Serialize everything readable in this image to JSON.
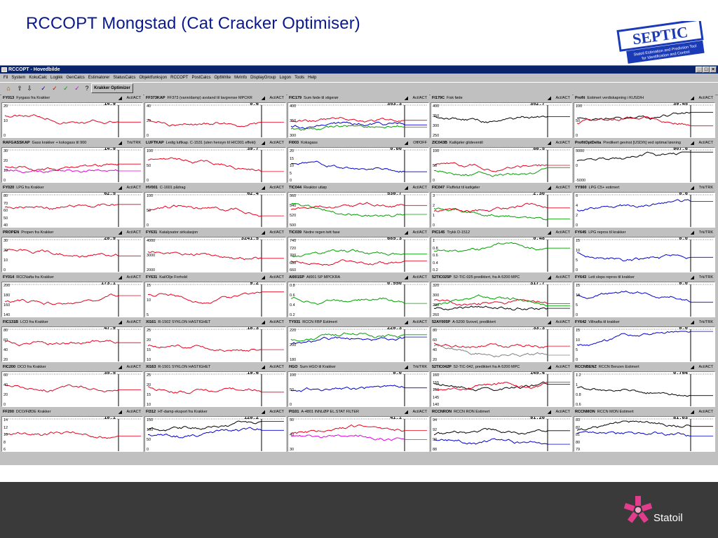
{
  "slide": {
    "title": "RCCOPT Mongstad (Cat Cracker Optimiser)"
  },
  "logo": {
    "word": "SEPTIC",
    "line1": "Statoil Estimation and Prediction Tool",
    "line2": "for Identification and Control"
  },
  "window": {
    "title": "RCCOPT - Hovedbilde"
  },
  "menu": [
    "Fil",
    "System",
    "KokuCalc",
    "Logikk",
    "GenCalcs",
    "Estimatorer",
    "StatusCalcs",
    "Objektfunksjon",
    "RCCOPT",
    "PostCalcs",
    "OptWrite",
    "MvInfo",
    "DisplayGroup",
    "Logon",
    "Tools",
    "Help"
  ],
  "toolbar": {
    "optimizer_button": "Krakker Optimizer"
  },
  "brand": {
    "name": "Statoil"
  },
  "colors": {
    "red": "#e8001c",
    "green": "#00a000",
    "blue": "#0000d0",
    "black": "#000000",
    "magenta": "#e000e0",
    "gray": "#808080",
    "title": "#0a1a8c"
  },
  "panels": [
    {
      "tag": "FY013",
      "desc": "Fyrgass fra Krakker",
      "mode": "Act/ACT",
      "value": "14.9",
      "ticks": [
        "20",
        "10",
        "0"
      ],
      "lines": [
        "red"
      ]
    },
    {
      "tag": "FF373KAP",
      "desc": "FF373 (vann/damp) avstand til lavgrense MPCKR",
      "mode": "Act/ACT",
      "value": "0.6",
      "ticks": [
        "40",
        "20",
        "0"
      ],
      "lines": [
        "red"
      ]
    },
    {
      "tag": "FIC179",
      "desc": "Sum føde til stigerør",
      "mode": "Act/ACT",
      "value": "353.3",
      "ticks": [
        "400",
        "350",
        "300"
      ],
      "lines": [
        "red",
        "blue",
        "green"
      ]
    },
    {
      "tag": "FI179C",
      "desc": "Fisk føde",
      "mode": "Act/ACT",
      "value": "352.7",
      "ticks": [
        "400",
        "350",
        "300",
        "250"
      ],
      "lines": [
        "black"
      ]
    },
    {
      "tag": "Profit",
      "desc": "Estimert verdiskapning i KUSD/H",
      "mode": "Act/ACT",
      "value": "39.45",
      "ticks": [
        "100",
        "50",
        "0"
      ],
      "lines": [
        "black",
        "red"
      ]
    },
    {
      "tag": "RAFGASSKAP",
      "desc": "Gass krakker + koksgass til 900",
      "mode": "Trk/TRK",
      "value": "14.9",
      "ticks": [
        "30",
        "20",
        "10",
        "0"
      ],
      "lines": [
        "red",
        "magenta"
      ]
    },
    {
      "tag": "LUFTKAP",
      "desc": "Ledig luftkap. C-1531 (uten hensyn til HIC001 effekt)",
      "mode": "Act/ACT",
      "value": "39.7",
      "ticks": [
        "100",
        "50",
        "0"
      ],
      "lines": [
        "red"
      ]
    },
    {
      "tag": "FI003",
      "desc": "Koksgass",
      "mode": "Off/OFF",
      "value": "0.00",
      "ticks": [
        "20",
        "15",
        "10",
        "5",
        "0"
      ],
      "lines": [
        "blue"
      ]
    },
    {
      "tag": "ZIC043B",
      "desc": "Katkjøler glideventil",
      "mode": "Act/ACT",
      "value": "86.5",
      "ticks": [
        "100",
        "50",
        "0"
      ],
      "lines": [
        "red",
        "green"
      ]
    },
    {
      "tag": "ProfitOptDelta",
      "desc": "Predikert gevinst [USD/h] ved optimal løsning",
      "mode": "Act/ACT",
      "value": "907.6",
      "ticks": [
        "5000",
        "0",
        "-5000"
      ],
      "lines": [
        "black"
      ]
    },
    {
      "tag": "FY020",
      "desc": "LPG fra Krakker",
      "mode": "Act/ACT",
      "value": "62.5",
      "ticks": [
        "80",
        "70",
        "60",
        "50",
        "40"
      ],
      "lines": [
        "red"
      ]
    },
    {
      "tag": "HV001",
      "desc": "C-1601 pådrag",
      "mode": "Act/ACT",
      "value": "62.4",
      "ticks": [
        "100",
        "50",
        "0"
      ],
      "lines": [
        "red"
      ]
    },
    {
      "tag": "TIC044",
      "desc": "Reaktor utløp",
      "mode": "Act/ACT",
      "value": "536.7",
      "ticks": [
        "560",
        "540",
        "520",
        "500"
      ],
      "lines": [
        "green",
        "red"
      ]
    },
    {
      "tag": "FIC047",
      "desc": "Fluffelut til katkjøler",
      "mode": "Act/ACT",
      "value": "2.30",
      "ticks": [
        "3",
        "2",
        "1",
        "0"
      ],
      "lines": [
        "green",
        "red"
      ]
    },
    {
      "tag": "YY900",
      "desc": "LPG C5+ estimert",
      "mode": "Trk/TRK",
      "value": "0.6",
      "ticks": [
        "6",
        "4",
        "2",
        "0"
      ],
      "lines": [
        "blue"
      ]
    },
    {
      "tag": "PROPEN",
      "desc": "Propen fra Krakker",
      "mode": "Act/ACT",
      "value": "20.9",
      "ticks": [
        "30",
        "20",
        "10",
        "0"
      ],
      "lines": [
        "red"
      ]
    },
    {
      "tag": "FY631",
      "desc": "Katalysator sirkulasjon",
      "mode": "Act/ACT",
      "value": "3241.5",
      "ticks": [
        "4000",
        "3000",
        "2000"
      ],
      "lines": [
        "red"
      ]
    },
    {
      "tag": "TIC039",
      "desc": "Nedre regen tett fase",
      "mode": "Act/ACT",
      "value": "685.3",
      "ticks": [
        "740",
        "720",
        "700",
        "680",
        "660"
      ],
      "lines": [
        "green",
        "red"
      ]
    },
    {
      "tag": "PIC145",
      "desc": "Trykk D-1512",
      "mode": "Act/ACT",
      "value": "0.48",
      "ticks": [
        "1",
        "0.8",
        "0.6",
        "0.4",
        "0.2"
      ],
      "lines": [
        "green"
      ]
    },
    {
      "tag": "FY645",
      "desc": "LPG repros til krakker",
      "mode": "Trk/TRK",
      "value": "0.0",
      "ticks": [
        "15",
        "10",
        "5",
        "0"
      ],
      "lines": [
        "blue"
      ]
    },
    {
      "tag": "FY014",
      "desc": "RCCNafta fra Krakker",
      "mode": "Act/ACT",
      "value": "173.1",
      "ticks": [
        "200",
        "180",
        "160",
        "140"
      ],
      "lines": [
        "red"
      ]
    },
    {
      "tag": "FY631",
      "desc": "Kat/Olje Forhold",
      "mode": "Act/ACT",
      "value": "9.2",
      "ticks": [
        "15",
        "10",
        "5"
      ],
      "lines": [
        "red"
      ]
    },
    {
      "tag": "AI001SP",
      "desc": "AI001 SP MPCKRA",
      "mode": "Act/ACT",
      "value": "0.550",
      "ticks": [
        "0.8",
        "0.6",
        "0.4",
        "0.2"
      ],
      "lines": [
        "green"
      ]
    },
    {
      "tag": "52TIC025P",
      "desc": "52-TIC-025 prediktert, fra A-5200 MPC",
      "mode": "Act/ACT",
      "value": "317.7",
      "ticks": [
        "320",
        "300",
        "280",
        "260"
      ],
      "lines": [
        "red",
        "green",
        "black"
      ]
    },
    {
      "tag": "FY643",
      "desc": "Lett slops repros til krakker",
      "mode": "Trk/TRK",
      "value": "0.0",
      "ticks": [
        "15",
        "10",
        "5",
        "0"
      ],
      "lines": [
        "blue"
      ]
    },
    {
      "tag": "FIC131B",
      "desc": "LCO fra Krakker",
      "mode": "Act/ACT",
      "value": "47.9",
      "ticks": [
        "80",
        "60",
        "40",
        "20"
      ],
      "lines": [
        "red"
      ]
    },
    {
      "tag": "XI161",
      "desc": "R-1502 SYKLON HASTIGHET",
      "mode": "Act/ACT",
      "value": "18.3",
      "ticks": [
        "25",
        "20",
        "15",
        "10"
      ],
      "lines": [
        "red"
      ]
    },
    {
      "tag": "TY931",
      "desc": "RCCN FBP Estimert",
      "mode": "Act/ACT",
      "value": "220.3",
      "ticks": [
        "220",
        "200",
        "180"
      ],
      "lines": [
        "green",
        "blue"
      ]
    },
    {
      "tag": "52AY005P",
      "desc": "A-5200 Svovel, prediktert",
      "mode": "Act/ACT",
      "value": "33.3",
      "ticks": [
        "80",
        "60",
        "40",
        "20"
      ],
      "lines": [
        "red",
        "gray"
      ]
    },
    {
      "tag": "FY642",
      "desc": "Villnafta til krakker",
      "mode": "Trk/TRK",
      "value": "0.0",
      "ticks": [
        "15",
        "10",
        "5",
        "0"
      ],
      "lines": [
        "blue"
      ]
    },
    {
      "tag": "FIC200",
      "desc": "DCO fra Krakker",
      "mode": "Act/ACT",
      "value": "35.5",
      "ticks": [
        "60",
        "40",
        "20",
        "0"
      ],
      "lines": [
        "red"
      ]
    },
    {
      "tag": "XI163",
      "desc": "R-1501 SYKLON HASTIGHET",
      "mode": "Act/ACT",
      "value": "19.6",
      "ticks": [
        "25",
        "20",
        "15",
        "10"
      ],
      "lines": [
        "red"
      ]
    },
    {
      "tag": "HGO",
      "desc": "Sum HGO til Krakker",
      "mode": "Trk/TRK",
      "value": "0.0",
      "ticks": [
        "100",
        "50",
        "0"
      ],
      "lines": [
        "blue"
      ]
    },
    {
      "tag": "52TIC042P",
      "desc": "52-TIC-042, prediktert fra A-5200 MPC",
      "mode": "Act/ACT",
      "value": "145.4",
      "ticks": [
        "160",
        "155",
        "150",
        "145",
        "140"
      ],
      "lines": [
        "black",
        "red"
      ]
    },
    {
      "tag": "RCCNBENZ",
      "desc": "RCCN Benzen Estimert",
      "mode": "Act/ACT",
      "value": "0.764",
      "ticks": [
        "1.2",
        "1",
        "0.8",
        "0.6"
      ],
      "lines": [
        "black"
      ]
    },
    {
      "tag": "FF200",
      "desc": "DCO/FØDE Krakker",
      "mode": "Act/ACT",
      "value": "10.1",
      "ticks": [
        "14",
        "12",
        "10",
        "8",
        "6"
      ],
      "lines": [
        "red"
      ]
    },
    {
      "tag": "FI312",
      "desc": "HT-damp eksport fra Krakker",
      "mode": "Act/ACT",
      "value": "120.2",
      "ticks": [
        "150",
        "100",
        "50",
        "0"
      ],
      "lines": [
        "black",
        "blue"
      ]
    },
    {
      "tag": "PI101",
      "desc": "A-4801 INNLØP EL.STAT FILTER",
      "mode": "Act/ACT",
      "value": "41.1",
      "ticks": [
        "50",
        "40",
        "30"
      ],
      "lines": [
        "red",
        "magenta"
      ]
    },
    {
      "tag": "RCCNRON",
      "desc": "RCCN RON Estimert",
      "mode": "Act/ACT",
      "value": "91.20",
      "ticks": [
        "94",
        "92",
        "90",
        "88"
      ],
      "lines": [
        "black",
        "blue"
      ]
    },
    {
      "tag": "RCCNMON",
      "desc": "RCCN MON Estimert",
      "mode": "Act/ACT",
      "value": "81.03",
      "ticks": [
        "83",
        "82",
        "81",
        "80",
        "79"
      ],
      "lines": [
        "black",
        "blue"
      ]
    }
  ]
}
